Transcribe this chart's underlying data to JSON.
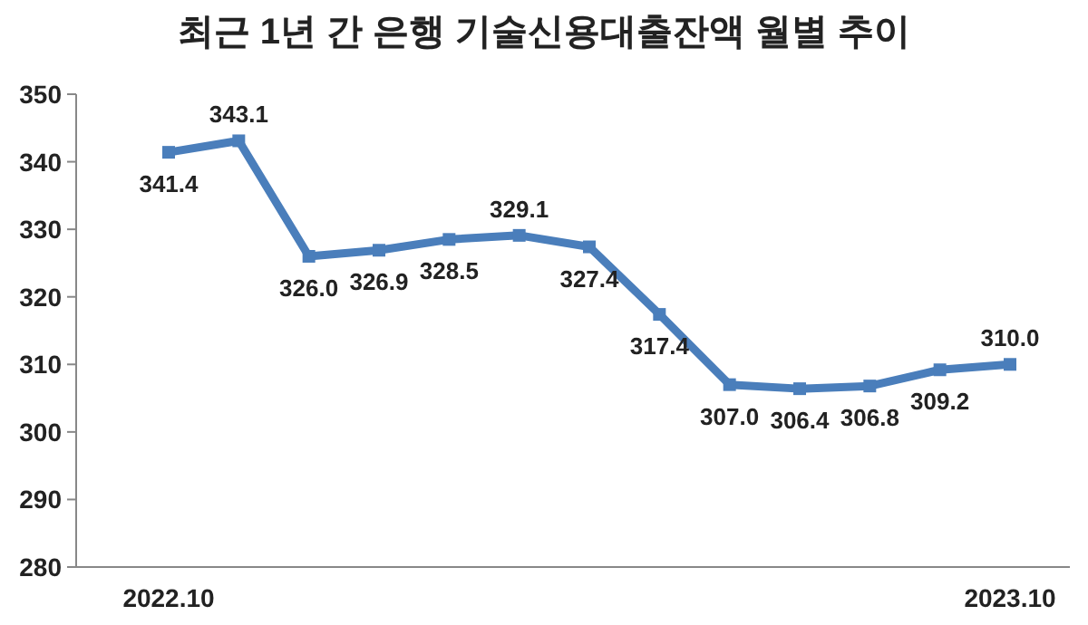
{
  "chart_data": {
    "type": "line",
    "title": "최근 1년 간 은행 기술신용대출잔액 월별 추이",
    "categories": [
      "2022.10",
      null,
      null,
      null,
      null,
      null,
      null,
      null,
      null,
      null,
      null,
      null,
      "2023.10"
    ],
    "series": [
      {
        "color": "#4a7ebb",
        "values": [
          341.4,
          343.1,
          326.0,
          326.9,
          328.5,
          329.1,
          327.4,
          317.4,
          307.0,
          306.4,
          306.8,
          309.2,
          310.0
        ],
        "value_labels": [
          "341.4",
          "343.1",
          "326.0",
          "326.9",
          "328.5",
          "329.1",
          "327.4",
          "317.4",
          "307.0",
          "306.4",
          "306.8",
          "309.2",
          "310.0"
        ]
      }
    ],
    "ylim": [
      280,
      350
    ],
    "yticks": [
      280,
      290,
      300,
      310,
      320,
      330,
      340,
      350
    ],
    "grid": false,
    "marker": "square",
    "line_style": "solid"
  }
}
